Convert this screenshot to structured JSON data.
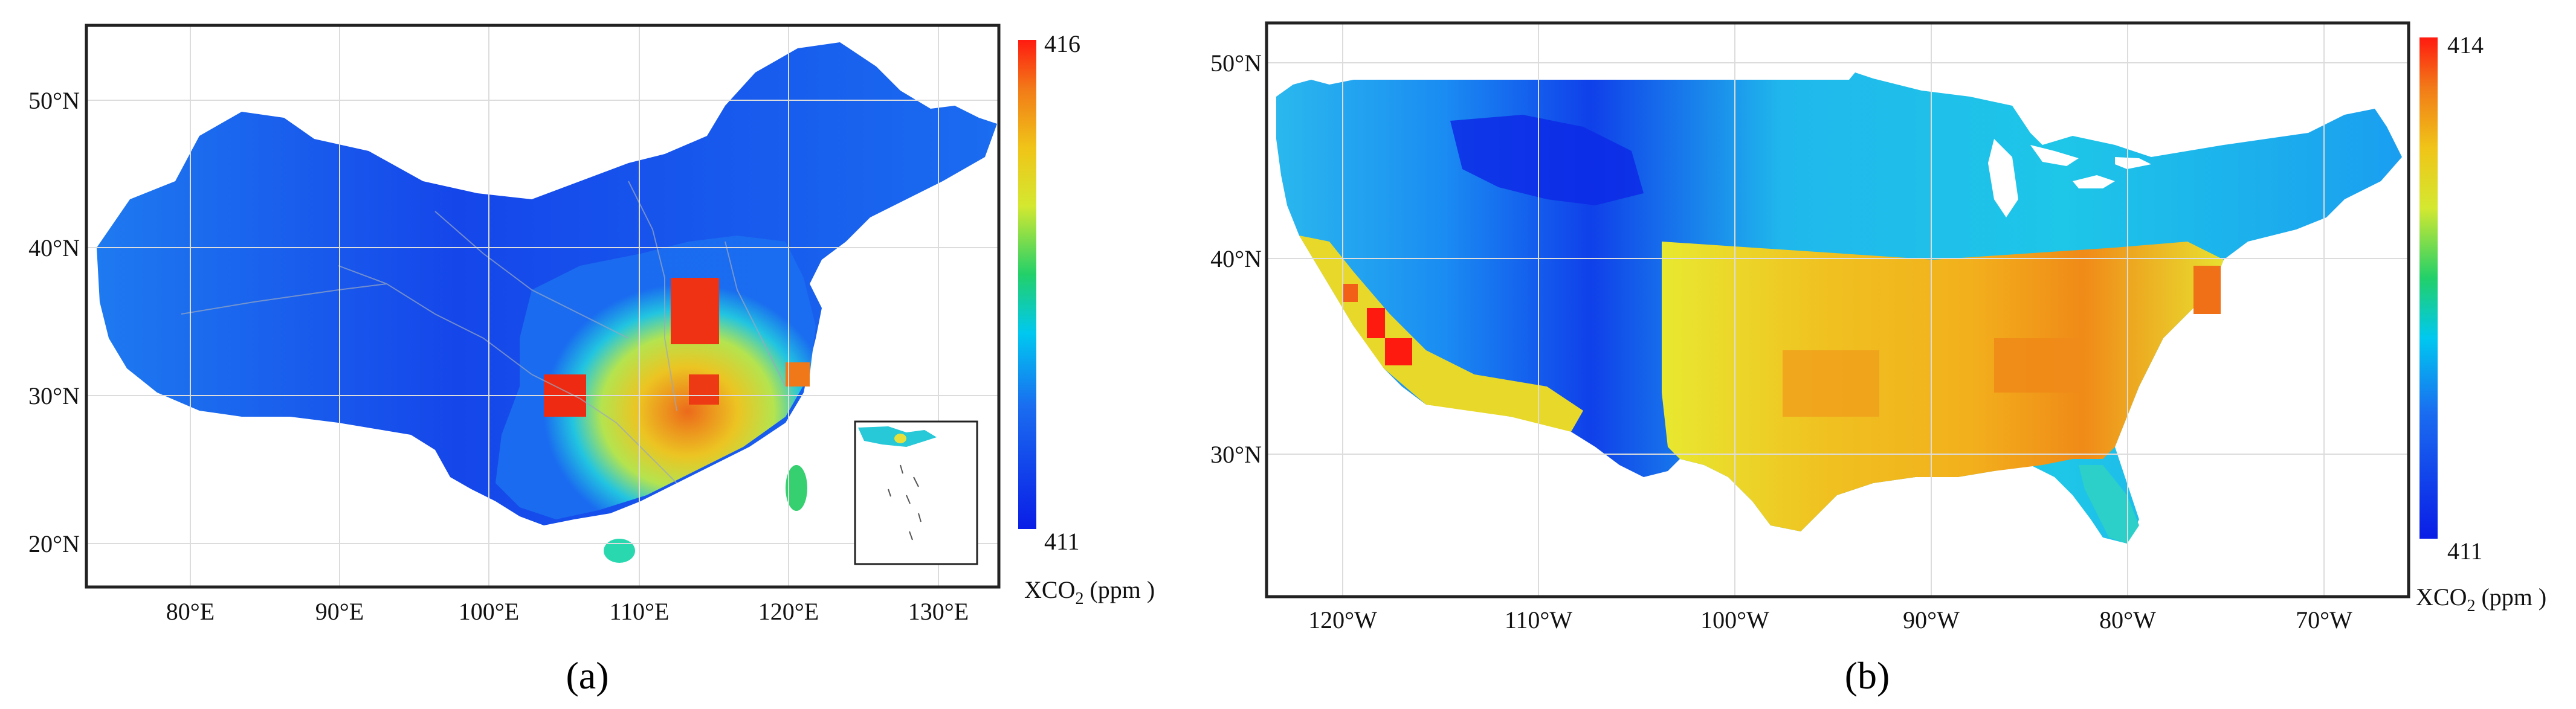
{
  "panels": [
    {
      "id": "a",
      "label": "(a)",
      "colorbar": {
        "max": "416",
        "min": "411",
        "unit_main": "XCO",
        "unit_sub": "2",
        "unit_tail": " (ppm )"
      },
      "x_ticks": [
        "80°E",
        "90°E",
        "100°E",
        "110°E",
        "120°E",
        "130°E"
      ],
      "y_ticks": [
        "50°N",
        "40°N",
        "30°N",
        "20°N"
      ]
    },
    {
      "id": "b",
      "label": "(b)",
      "colorbar": {
        "max": "414",
        "min": "411",
        "unit_main": "XCO",
        "unit_sub": "2",
        "unit_tail": " (ppm )"
      },
      "x_ticks": [
        "120°W",
        "110°W",
        "100°W",
        "90°W",
        "80°W",
        "70°W"
      ],
      "y_ticks": [
        "50°N",
        "40°N",
        "30°N"
      ]
    }
  ],
  "colors": {
    "low": "#0a1de6",
    "mid_low": "#00c8f0",
    "mid": "#22d06a",
    "mid_high": "#f0e81c",
    "high": "#ff1a10",
    "grid": "#d8d8d8",
    "frame": "#222222"
  }
}
